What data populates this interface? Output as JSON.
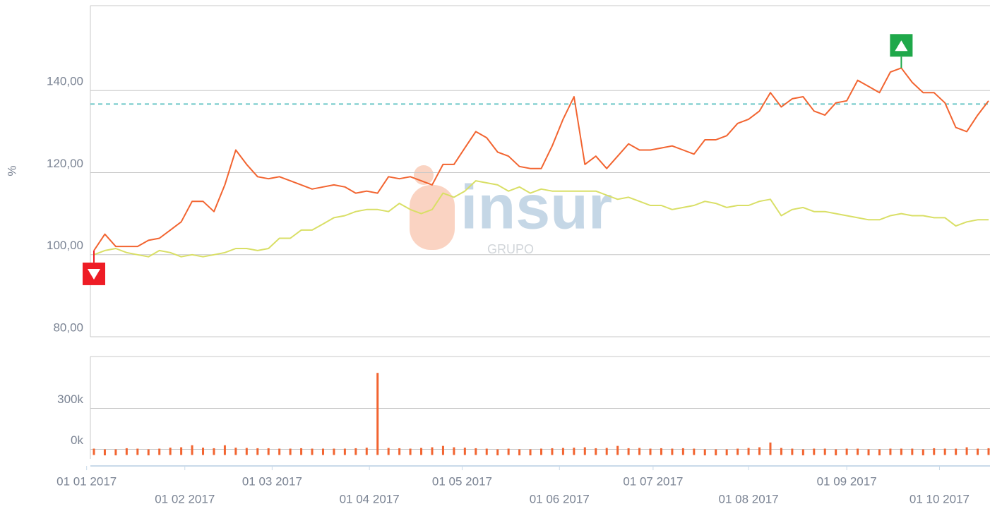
{
  "chart_data": [
    {
      "type": "line",
      "y_label": "%",
      "ylim": [
        80,
        160
      ],
      "yticks": [
        {
          "value": 80,
          "label": "80,00"
        },
        {
          "value": 100,
          "label": "100,00"
        },
        {
          "value": 120,
          "label": "120,00"
        },
        {
          "value": 140,
          "label": "140,00"
        }
      ],
      "grid": true,
      "reference_line": 136.7,
      "reference_color": "#6cc6c6",
      "max_marker_color": "#1fa84a",
      "min_marker_color": "#ee1c25",
      "watermark": "insur",
      "watermark_sub": "GRUPO",
      "x": [
        "2017-01-03",
        "2017-01-06",
        "2017-01-10",
        "2017-01-13",
        "2017-01-17",
        "2017-01-20",
        "2017-01-24",
        "2017-01-27",
        "2017-01-31",
        "2017-02-03",
        "2017-02-07",
        "2017-02-10",
        "2017-02-14",
        "2017-02-17",
        "2017-02-21",
        "2017-02-24",
        "2017-02-28",
        "2017-03-03",
        "2017-03-07",
        "2017-03-10",
        "2017-03-14",
        "2017-03-17",
        "2017-03-21",
        "2017-03-24",
        "2017-03-28",
        "2017-03-31",
        "2017-04-04",
        "2017-04-07",
        "2017-04-11",
        "2017-04-14",
        "2017-04-18",
        "2017-04-21",
        "2017-04-25",
        "2017-04-28",
        "2017-05-02",
        "2017-05-05",
        "2017-05-09",
        "2017-05-12",
        "2017-05-16",
        "2017-05-19",
        "2017-05-23",
        "2017-05-26",
        "2017-05-30",
        "2017-06-02",
        "2017-06-06",
        "2017-06-09",
        "2017-06-13",
        "2017-06-16",
        "2017-06-20",
        "2017-06-23",
        "2017-06-27",
        "2017-06-30",
        "2017-07-04",
        "2017-07-07",
        "2017-07-11",
        "2017-07-14",
        "2017-07-18",
        "2017-07-21",
        "2017-07-25",
        "2017-07-28",
        "2017-08-01",
        "2017-08-04",
        "2017-08-08",
        "2017-08-11",
        "2017-08-15",
        "2017-08-18",
        "2017-08-22",
        "2017-08-25",
        "2017-08-29",
        "2017-09-01",
        "2017-09-05",
        "2017-09-08",
        "2017-09-12",
        "2017-09-15",
        "2017-09-19",
        "2017-09-22",
        "2017-09-26",
        "2017-09-29",
        "2017-10-03",
        "2017-10-06",
        "2017-10-10",
        "2017-10-13",
        "2017-10-17"
      ],
      "series": [
        {
          "color": "#f26430",
          "values": [
            101,
            105,
            102,
            102,
            102,
            103.5,
            104,
            106,
            108,
            113,
            113,
            110.5,
            117,
            125.5,
            122,
            119,
            118.5,
            119,
            118,
            117,
            116,
            116.5,
            117,
            116.5,
            115,
            115.5,
            115,
            119,
            118.5,
            119,
            118,
            117,
            122,
            122,
            126,
            130,
            128.5,
            125,
            124,
            121.5,
            121,
            121,
            126.5,
            133,
            138.5,
            122,
            124,
            121,
            124,
            127,
            125.5,
            125.5,
            126,
            126.5,
            125.5,
            124.5,
            128,
            128,
            129,
            132,
            133,
            135,
            139.5,
            136,
            138,
            138.5,
            135,
            134,
            137,
            137.5,
            142.5,
            141,
            139.5,
            144.5,
            145.5,
            142,
            139.5,
            139.5,
            137,
            131,
            130,
            134,
            137.5
          ]
        },
        {
          "color": "#d9df66",
          "values": [
            100,
            101,
            101.5,
            100.5,
            100,
            99.5,
            101,
            100.5,
            99.5,
            100,
            99.5,
            100,
            100.5,
            101.5,
            101.5,
            101,
            101.5,
            104,
            104,
            106,
            106,
            107.5,
            109,
            109.5,
            110.5,
            111,
            111,
            110.5,
            112.5,
            111,
            110,
            111,
            115,
            114,
            115.5,
            118,
            117.5,
            117,
            115.5,
            116.5,
            115,
            116,
            115.5,
            115.5,
            115.5,
            115.5,
            115.5,
            114.5,
            113.5,
            114,
            113,
            112,
            112,
            111,
            111.5,
            112,
            113,
            112.5,
            111.5,
            112,
            112,
            113,
            113.5,
            109.5,
            111,
            111.5,
            110.5,
            110.5,
            110,
            109.5,
            109,
            108.5,
            108.5,
            109.5,
            110,
            109.5,
            109.5,
            109,
            109,
            107,
            108,
            108.5,
            108.5
          ]
        }
      ]
    },
    {
      "type": "bar",
      "color": "#f26430",
      "ylim": [
        -70000,
        680000
      ],
      "yticks": [
        {
          "value": 0,
          "label": "0k"
        },
        {
          "value": 300000,
          "label": "300k"
        }
      ],
      "grid": true,
      "values": [
        5000,
        0,
        0,
        8000,
        5000,
        0,
        5000,
        12000,
        15000,
        30000,
        12000,
        8000,
        30000,
        12000,
        10000,
        8000,
        8000,
        5000,
        5000,
        8000,
        5000,
        5000,
        5000,
        5000,
        8000,
        12000,
        560000,
        10000,
        8000,
        5000,
        10000,
        15000,
        25000,
        15000,
        12000,
        8000,
        5000,
        0,
        5000,
        0,
        0,
        5000,
        8000,
        10000,
        12000,
        15000,
        8000,
        10000,
        25000,
        8000,
        10000,
        5000,
        8000,
        5000,
        8000,
        5000,
        0,
        0,
        0,
        5000,
        10000,
        15000,
        50000,
        10000,
        5000,
        0,
        5000,
        5000,
        0,
        5000,
        5000,
        0,
        0,
        5000,
        5000,
        5000,
        0,
        8000,
        5000,
        5000,
        15000,
        5000,
        8000
      ],
      "xticks": [
        {
          "value": "2017-01-01",
          "label": "01 01 2017"
        },
        {
          "value": "2017-02-01",
          "label": "01 02 2017"
        },
        {
          "value": "2017-03-01",
          "label": "01 03 2017"
        },
        {
          "value": "2017-04-01",
          "label": "01 04 2017"
        },
        {
          "value": "2017-05-01",
          "label": "01 05 2017"
        },
        {
          "value": "2017-06-01",
          "label": "01 06 2017"
        },
        {
          "value": "2017-07-01",
          "label": "01 07 2017"
        },
        {
          "value": "2017-08-01",
          "label": "01 08 2017"
        },
        {
          "value": "2017-09-01",
          "label": "01 09 2017"
        },
        {
          "value": "2017-10-01",
          "label": "01 10 2017"
        }
      ]
    }
  ]
}
